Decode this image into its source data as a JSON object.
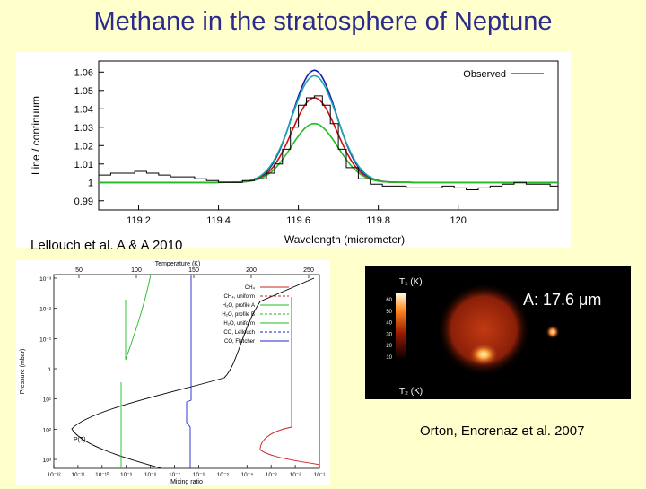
{
  "title": "Methane in the stratosphere of Neptune",
  "caption_top": "Lellouch et al. A & A 2010",
  "caption_right": "Orton, Encrenaz et al. 2007",
  "chart_data": [
    {
      "type": "line",
      "xlabel": "Wavelength (micrometer)",
      "ylabel": "Line / continuum",
      "xlim": [
        119.1,
        120.25
      ],
      "ylim": [
        0.985,
        1.066
      ],
      "xticks": [
        "119.2",
        "119.4",
        "119.6",
        "119.8",
        "120"
      ],
      "xtick_values": [
        119.2,
        119.4,
        119.6,
        119.8,
        120.0
      ],
      "yticks": [
        "0.99",
        "1",
        "1.01",
        "1.02",
        "1.03",
        "1.04",
        "1.05",
        "1.06"
      ],
      "ytick_values": [
        0.99,
        1.0,
        1.01,
        1.02,
        1.03,
        1.04,
        1.05,
        1.06
      ],
      "legend": "top-right",
      "grid": false,
      "observed": {
        "name": "Observed",
        "x": [
          119.1,
          119.13,
          119.16,
          119.19,
          119.22,
          119.25,
          119.28,
          119.31,
          119.34,
          119.37,
          119.4,
          119.43,
          119.46,
          119.49,
          119.52,
          119.54,
          119.56,
          119.58,
          119.6,
          119.62,
          119.64,
          119.66,
          119.68,
          119.7,
          119.72,
          119.75,
          119.78,
          119.81,
          119.84,
          119.87,
          119.9,
          119.93,
          119.96,
          119.99,
          120.02,
          120.05,
          120.08,
          120.11,
          120.14,
          120.17,
          120.2,
          120.23
        ],
        "y": [
          1.004,
          1.005,
          1.005,
          1.006,
          1.005,
          1.004,
          1.003,
          1.003,
          1.002,
          1.001,
          1.0,
          1.0,
          1.001,
          1.002,
          1.005,
          1.01,
          1.018,
          1.03,
          1.042,
          1.046,
          1.047,
          1.042,
          1.032,
          1.018,
          1.008,
          1.002,
          0.999,
          0.998,
          0.998,
          0.997,
          0.997,
          0.997,
          0.998,
          0.997,
          0.996,
          0.997,
          0.998,
          0.999,
          1.0,
          0.999,
          0.999,
          0.998
        ]
      },
      "series": [
        {
          "color": "#1a1ab0",
          "peak": 1.061,
          "sigma": 0.055
        },
        {
          "color": "#1aa8a8",
          "peak": 1.058,
          "sigma": 0.057
        },
        {
          "color": "#cc1010",
          "peak": 1.046,
          "sigma": 0.056
        },
        {
          "color": "#22bb22",
          "peak": 1.032,
          "sigma": 0.058
        }
      ],
      "center": 119.64
    },
    {
      "type": "line",
      "xlabel": "Mixing ratio",
      "ylabel": "Pressure (mbar)",
      "top_label": "Temperature (K)",
      "top_ticks": [
        "50",
        "100",
        "150",
        "200",
        "250"
      ],
      "xticks": [
        "10⁻¹²",
        "10⁻¹¹",
        "10⁻¹⁰",
        "10⁻⁹",
        "10⁻⁸",
        "10⁻⁷",
        "10⁻⁶",
        "10⁻⁵",
        "10⁻⁴",
        "10⁻³",
        "10⁻²",
        "10⁻¹"
      ],
      "yticks": [
        "10⁻³",
        "10⁻²",
        "10⁻¹",
        "1",
        "10¹",
        "10²",
        "10³"
      ],
      "legend": [
        "CH₄",
        "CH₄, uniform",
        "H₂O, profile A",
        "H₂O, profile B",
        "H₂O, uniform",
        "CO, Lellouch",
        "CO, Fletcher"
      ],
      "legend_colors": [
        "#cc2222",
        "#cc2222",
        "#22bb22",
        "#22bb22",
        "#22bb22",
        "#2222cc",
        "#2222cc"
      ],
      "pt_label": "P(T)"
    }
  ],
  "image_panel": {
    "label_top": "T₁ (K)",
    "label_bottom": "T₂ (K)",
    "wavelength_label": "A: 17.6 μm",
    "scale_ticks": [
      "60",
      "50",
      "40",
      "30",
      "20",
      "10"
    ]
  }
}
